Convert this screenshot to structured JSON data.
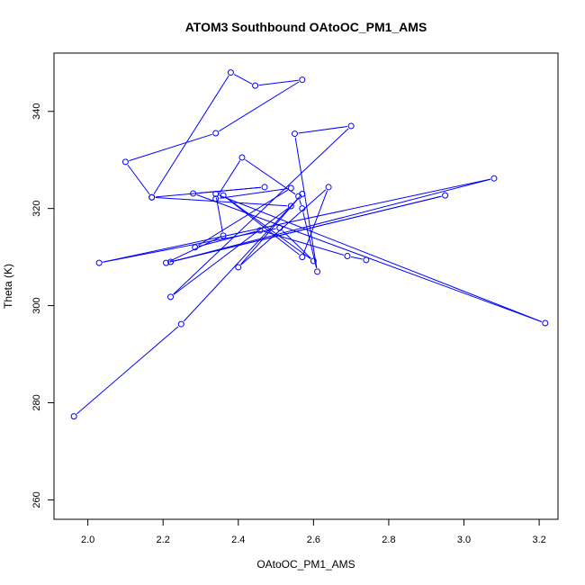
{
  "chart_data": {
    "type": "line",
    "title": "ATOM3 Southbound OAtoOC_PM1_AMS",
    "xlabel": "OAtoOC_PM1_AMS",
    "ylabel": "Theta (K)",
    "xlim": [
      1.91,
      3.25
    ],
    "ylim": [
      256,
      352
    ],
    "xticks": [
      "2.0",
      "2.2",
      "2.4",
      "2.6",
      "2.8",
      "3.0",
      "3.2"
    ],
    "yticks": [
      "260",
      "280",
      "300",
      "320",
      "340"
    ],
    "color": "#0000ff",
    "grid": false,
    "series": [
      {
        "points": [
          [
            1.963,
            277.2
          ],
          [
            2.248,
            296.2
          ],
          [
            2.57,
            323.0
          ],
          [
            2.4,
            307.9
          ],
          [
            2.64,
            324.4
          ],
          [
            2.57,
            310.0
          ],
          [
            2.36,
            322.7
          ],
          [
            2.6,
            309.2
          ],
          [
            2.51,
            316.0
          ],
          [
            2.03,
            308.8
          ],
          [
            3.08,
            326.2
          ],
          [
            2.22,
            309.0
          ],
          [
            2.95,
            322.7
          ],
          [
            2.208,
            308.8
          ],
          [
            2.36,
            314.4
          ],
          [
            2.34,
            323.0
          ],
          [
            3.216,
            296.4
          ],
          [
            2.28,
            323.1
          ],
          [
            2.47,
            324.4
          ],
          [
            2.17,
            322.3
          ],
          [
            2.1,
            329.6
          ],
          [
            2.34,
            335.5
          ],
          [
            2.57,
            346.5
          ],
          [
            2.445,
            345.3
          ],
          [
            2.38,
            348.0
          ],
          [
            2.17,
            322.3
          ],
          [
            2.54,
            320.5
          ],
          [
            2.22,
            301.8
          ],
          [
            2.7,
            337.0
          ],
          [
            2.55,
            335.4
          ],
          [
            2.61,
            307.0
          ],
          [
            2.57,
            320.0
          ],
          [
            2.56,
            322.5
          ],
          [
            2.41,
            330.5
          ],
          [
            2.34,
            322.0
          ],
          [
            2.54,
            324.2
          ],
          [
            2.285,
            312.0
          ],
          [
            2.458,
            315.5
          ],
          [
            2.69,
            310.2
          ],
          [
            2.74,
            309.4
          ]
        ]
      }
    ]
  }
}
